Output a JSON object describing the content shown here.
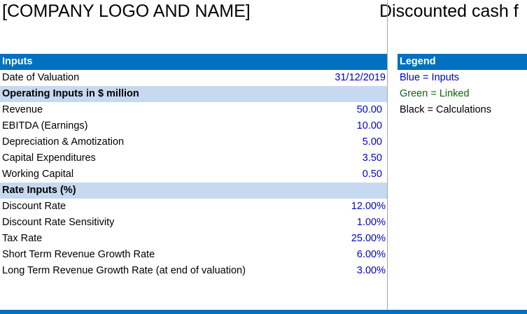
{
  "header": {
    "company": "[COMPANY LOGO AND NAME]",
    "sheet_title": "Discounted cash f"
  },
  "inputs": {
    "title": "Inputs",
    "date_label": "Date of Valuation",
    "date_value": "31/12/2019",
    "operating_title": "Operating Inputs in $ million",
    "operating": [
      {
        "label": "Revenue",
        "value": "50.00"
      },
      {
        "label": "EBITDA (Earnings)",
        "value": "10.00"
      },
      {
        "label": "Depreciation & Amotization",
        "value": "5.00"
      },
      {
        "label": "Capital Expenditures",
        "value": "3.50"
      },
      {
        "label": "Working Capital",
        "value": "0.50"
      }
    ],
    "rate_title": "Rate Inputs (%)",
    "rates": [
      {
        "label": "Discount Rate",
        "value": "12.00%"
      },
      {
        "label": "Discount Rate Sensitivity",
        "value": "1.00%"
      },
      {
        "label": "Tax Rate",
        "value": "25.00%"
      },
      {
        "label": "Short Term Revenue Growth Rate",
        "value": "6.00%"
      },
      {
        "label": "Long Term Revenue Growth Rate (at end of valuation)",
        "value": "3.00%"
      }
    ]
  },
  "legend": {
    "title": "Legend",
    "items": [
      {
        "text": "Blue = Inputs",
        "color": "#0000cc"
      },
      {
        "text": "Green = Linked",
        "color": "#007000"
      },
      {
        "text": "Black = Calculations",
        "color": "#000000"
      }
    ]
  }
}
